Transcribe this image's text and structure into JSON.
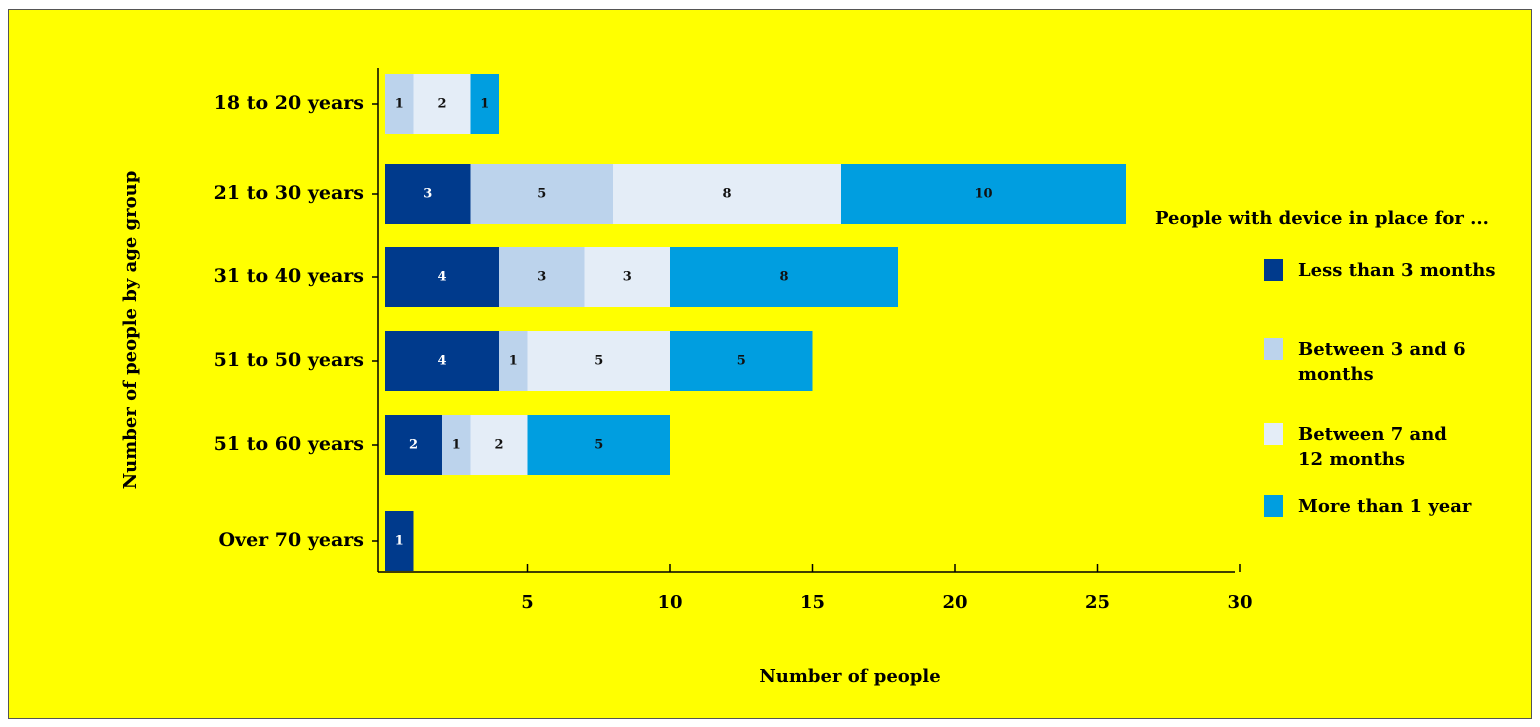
{
  "chart_data": {
    "type": "bar",
    "orientation": "horizontal",
    "stacked": true,
    "categories": [
      "18 to 20 years",
      "21 to 30 years",
      "31 to 40 years",
      "51 to 50 years",
      "51 to 60 years",
      "Over 70 years"
    ],
    "series": [
      {
        "name": "Less than 3 months",
        "values": [
          0,
          3,
          4,
          4,
          2,
          1
        ],
        "color": "#003a8c"
      },
      {
        "name": "Between 3 and 6 months",
        "values": [
          1,
          5,
          3,
          1,
          1,
          0
        ],
        "color": "#bcd3ec"
      },
      {
        "name": "Between 7 and 12 months",
        "values": [
          2,
          8,
          3,
          5,
          2,
          0
        ],
        "color": "#e4edf7"
      },
      {
        "name": "More than 1 year",
        "values": [
          1,
          10,
          8,
          5,
          5,
          0
        ],
        "color": "#009ee0"
      }
    ],
    "xlabel": "Number of people",
    "ylabel": "Number of people by age group",
    "xticks": [
      "5",
      "10",
      "15",
      "20",
      "25",
      "30"
    ],
    "xlim": [
      0,
      30
    ],
    "legend_title": "People with device in place for ...",
    "legend_position": "right",
    "background": "#ffff00",
    "grid": false
  }
}
